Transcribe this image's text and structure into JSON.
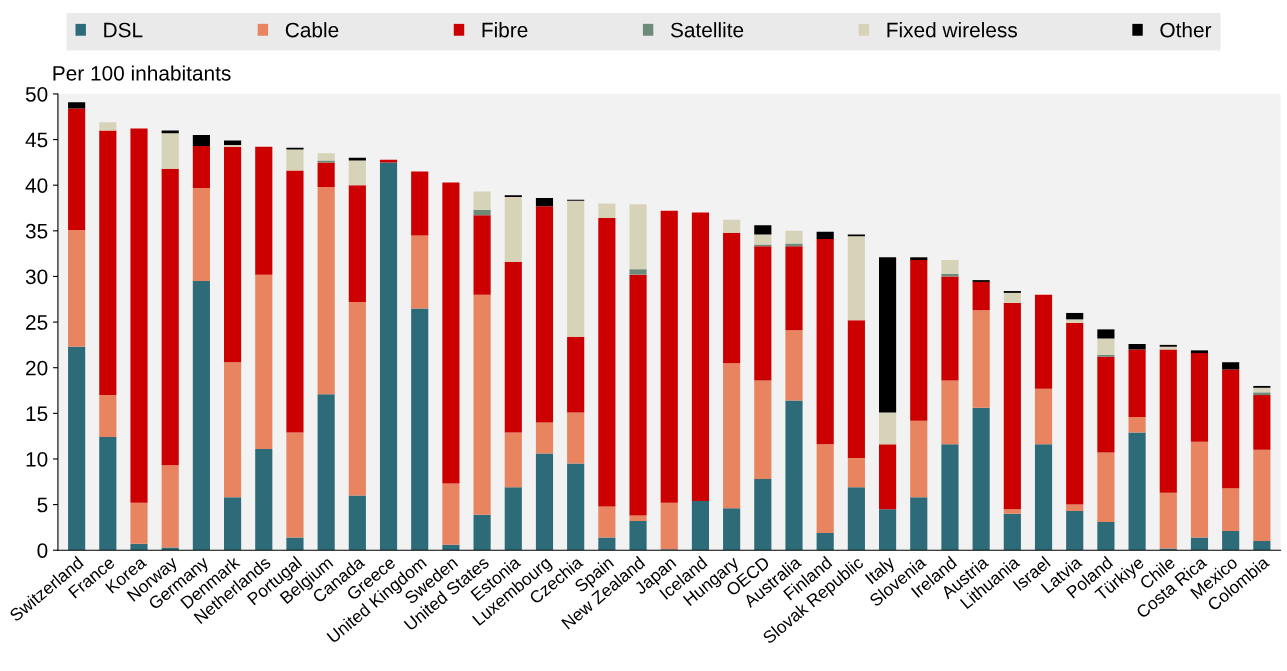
{
  "chart_data": {
    "type": "bar",
    "stacked": true,
    "ylabel": "Per 100 inhabitants",
    "categories": [
      "Switzerland",
      "France",
      "Korea",
      "Norway",
      "Germany",
      "Denmark",
      "Netherlands",
      "Portugal",
      "Belgium",
      "Canada",
      "Greece",
      "United Kingdom",
      "Sweden",
      "United States",
      "Estonia",
      "Luxembourg",
      "Czechia",
      "Spain",
      "New Zealand",
      "Japan",
      "Iceland",
      "Hungary",
      "OECD",
      "Australia",
      "Finland",
      "Slovak Republic",
      "Italy",
      "Slovenia",
      "Ireland",
      "Austria",
      "Lithuania",
      "Israel",
      "Latvia",
      "Poland",
      "Türkiye",
      "Chile",
      "Costa Rica",
      "Mexico",
      "Colombia"
    ],
    "series": [
      {
        "name": "DSL",
        "color": "#2e6b78",
        "values": [
          22.3,
          12.4,
          0.7,
          0.3,
          29.5,
          5.8,
          11.1,
          1.4,
          17.1,
          6.0,
          42.5,
          26.5,
          0.6,
          3.9,
          6.9,
          10.6,
          9.5,
          1.4,
          3.2,
          0.1,
          5.4,
          4.6,
          7.8,
          16.4,
          1.9,
          6.9,
          4.5,
          5.8,
          11.6,
          15.6,
          4.0,
          11.6,
          4.3,
          3.1,
          12.9,
          0.2,
          1.4,
          2.1,
          1.0
        ]
      },
      {
        "name": "Cable",
        "color": "#e8845f",
        "values": [
          12.8,
          4.6,
          4.5,
          9.0,
          10.2,
          14.8,
          19.1,
          11.5,
          22.7,
          21.2,
          0,
          8.0,
          6.7,
          24.1,
          6.0,
          3.4,
          5.6,
          3.4,
          0.6,
          5.1,
          0,
          15.9,
          10.8,
          7.7,
          9.7,
          3.2,
          0,
          8.4,
          7.0,
          10.7,
          0.5,
          6.1,
          0.7,
          7.6,
          1.7,
          6.1,
          10.5,
          4.7,
          10.0
        ]
      },
      {
        "name": "Fibre",
        "color": "#cc0000",
        "values": [
          13.3,
          29.0,
          41.0,
          32.5,
          4.6,
          23.6,
          14.0,
          28.7,
          2.7,
          12.8,
          0.3,
          7.0,
          33.0,
          8.7,
          18.7,
          23.7,
          8.3,
          31.6,
          26.4,
          32.0,
          31.6,
          14.3,
          14.7,
          9.2,
          22.5,
          15.1,
          7.1,
          17.6,
          11.4,
          3.1,
          22.6,
          10.3,
          19.9,
          10.5,
          7.4,
          15.7,
          9.7,
          13.0,
          6.0
        ]
      },
      {
        "name": "Satellite",
        "color": "#6e8a78",
        "values": [
          0,
          0,
          0,
          0,
          0,
          0,
          0,
          0,
          0.2,
          0,
          0,
          0,
          0,
          0.6,
          0,
          0,
          0,
          0,
          0.6,
          0,
          0,
          0,
          0.2,
          0.3,
          0,
          0,
          0,
          0,
          0.3,
          0,
          0,
          0,
          0,
          0.2,
          0,
          0,
          0,
          0,
          0.3
        ]
      },
      {
        "name": "Fixed wireless",
        "color": "#d6d3b8",
        "values": [
          0,
          0.9,
          0,
          3.9,
          0,
          0.2,
          0,
          2.3,
          0.8,
          2.7,
          0,
          0,
          0,
          2.0,
          7.1,
          0,
          14.9,
          1.6,
          7.1,
          0,
          0,
          1.4,
          1.1,
          1.4,
          0,
          9.2,
          3.5,
          0,
          1.5,
          0,
          1.1,
          0,
          0.4,
          1.8,
          0,
          0.3,
          0,
          0,
          0.5
        ]
      },
      {
        "name": "Other",
        "color": "#000000",
        "values": [
          0.7,
          0,
          0,
          0.3,
          1.2,
          0.5,
          0,
          0.2,
          0,
          0.3,
          0,
          0,
          0,
          0,
          0.2,
          0.9,
          0.1,
          0,
          0,
          0,
          0,
          0,
          1.0,
          0,
          0.8,
          0.2,
          17.0,
          0.3,
          0,
          0.2,
          0.2,
          0,
          0.7,
          1.0,
          0.6,
          0.2,
          0.3,
          0.8,
          0.2
        ]
      }
    ],
    "ylim": [
      0,
      50
    ],
    "yticks": [
      0,
      5,
      10,
      15,
      20,
      25,
      30,
      35,
      40,
      45,
      50
    ],
    "grid": false,
    "legend": "top"
  }
}
